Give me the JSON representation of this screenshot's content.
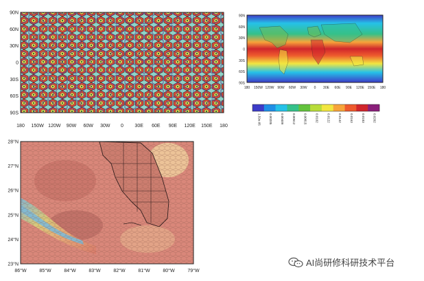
{
  "panel_a": {
    "lat_labels": [
      "90N",
      "60N",
      "30N",
      "0",
      "30S",
      "60S",
      "90S"
    ],
    "lon_labels": [
      "180",
      "150W",
      "120W",
      "90W",
      "60W",
      "30W",
      "0",
      "30E",
      "60E",
      "90E",
      "120E",
      "150E",
      "180"
    ]
  },
  "panel_b": {
    "lat_labels": [
      "90N",
      "60N",
      "30N",
      "0",
      "30S",
      "60S",
      "90S"
    ],
    "lon_labels": [
      "180",
      "150W",
      "120W",
      "90W",
      "60W",
      "30W",
      "0",
      "30E",
      "60E",
      "90E",
      "120E",
      "150E",
      "180"
    ],
    "colorbar": {
      "labels": [
        "1.59e-05",
        "0.00205",
        "0.00409",
        "0.00612",
        "0.00815",
        "0.0102",
        "0.0122",
        "0.0142",
        "0.0163",
        "0.0183",
        "0.0202"
      ],
      "colors": [
        "#3d3cc8",
        "#1f8fe6",
        "#25c1e8",
        "#35c18a",
        "#63c23c",
        "#b8dc3a",
        "#f2e640",
        "#f7a43a",
        "#ee5a2d",
        "#d0262c",
        "#8a1f7a"
      ]
    }
  },
  "panel_c": {
    "lat_labels": [
      "28°N",
      "27°N",
      "26°N",
      "25°N",
      "24°N",
      "23°N"
    ],
    "lon_labels": [
      "86°W",
      "85°W",
      "84°W",
      "83°W",
      "82°W",
      "81°W",
      "80°W",
      "79°W"
    ]
  },
  "watermark": {
    "text": "AI尚研修科研技术平台"
  }
}
